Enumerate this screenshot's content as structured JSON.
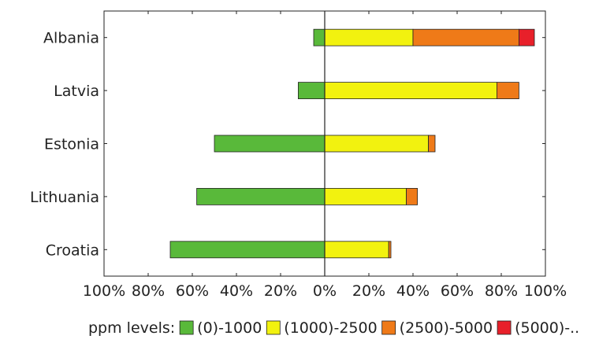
{
  "chart_data": {
    "type": "bar",
    "orientation": "horizontal",
    "stacked": true,
    "diverging": true,
    "categories": [
      "Albania",
      "Latvia",
      "Estonia",
      "Lithuania",
      "Croatia"
    ],
    "series": [
      {
        "name": "(0)-1000",
        "color": "#59b93a",
        "side": "negative",
        "values": [
          5,
          12,
          50,
          58,
          70
        ]
      },
      {
        "name": "(1000)-2500",
        "color": "#f2f20f",
        "side": "positive",
        "values": [
          40,
          78,
          47,
          37,
          29
        ]
      },
      {
        "name": "(2500)-5000",
        "color": "#ef7a18",
        "side": "positive",
        "values": [
          48,
          10,
          3,
          5,
          1
        ]
      },
      {
        "name": "(5000)-..",
        "color": "#e8202a",
        "side": "positive",
        "values": [
          7,
          0,
          0,
          0,
          0
        ]
      }
    ],
    "xlim": [
      -100,
      100
    ],
    "xticks": [
      "100%",
      "80%",
      "60%",
      "40%",
      "20%",
      "0%",
      "20%",
      "40%",
      "60%",
      "80%",
      "100%"
    ],
    "legend": {
      "title": "ppm levels:",
      "position": "bottom"
    },
    "grid": false,
    "title": "",
    "xlabel": "",
    "ylabel": ""
  }
}
